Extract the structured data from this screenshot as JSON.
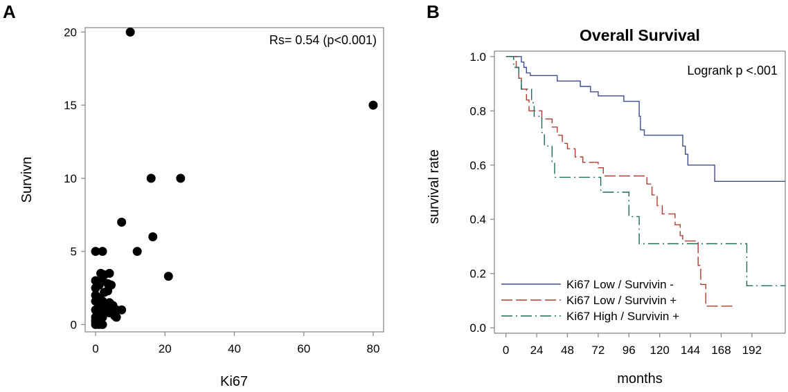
{
  "panels": {
    "a_label": "A",
    "b_label": "B"
  },
  "chart_data": [
    {
      "type": "scatter",
      "title": "",
      "xlabel": "Ki67",
      "ylabel": "Survivn",
      "xlim": [
        -3,
        83
      ],
      "ylim": [
        -0.5,
        20.3
      ],
      "xticks": [
        0,
        20,
        40,
        60,
        80
      ],
      "yticks": [
        0,
        5,
        10,
        15,
        20
      ],
      "grid": false,
      "annotation": "Rs= 0.54 (p<0.001)",
      "series": [
        {
          "points": [
            [
              10,
              20
            ],
            [
              80,
              15
            ],
            [
              16,
              10
            ],
            [
              24.5,
              10
            ],
            [
              7.5,
              7
            ],
            [
              16.5,
              6
            ],
            [
              12,
              5
            ],
            [
              21,
              3.3
            ],
            [
              0,
              5
            ],
            [
              2,
              5
            ],
            [
              1.5,
              3.5
            ],
            [
              4,
              3.5
            ],
            [
              2.5,
              3.4
            ],
            [
              0,
              3
            ],
            [
              2,
              3
            ],
            [
              1,
              2.7
            ],
            [
              3.5,
              2.8
            ],
            [
              0,
              2.5
            ],
            [
              4.5,
              2.7
            ],
            [
              0,
              2
            ],
            [
              2.5,
              2.2
            ],
            [
              3.5,
              2.3
            ],
            [
              1,
              1.8
            ],
            [
              0,
              1.6
            ],
            [
              2,
              1.6
            ],
            [
              4,
              1.5
            ],
            [
              1,
              1.3
            ],
            [
              3,
              1.3
            ],
            [
              5,
              1.3
            ],
            [
              0,
              1
            ],
            [
              2,
              1
            ],
            [
              6,
              1
            ],
            [
              7.5,
              1
            ],
            [
              1,
              0.8
            ],
            [
              4,
              0.8
            ],
            [
              0,
              0.5
            ],
            [
              2,
              0.5
            ],
            [
              5.5,
              0.6
            ],
            [
              0,
              0
            ],
            [
              1,
              0
            ],
            [
              2,
              0
            ],
            [
              0,
              0.2
            ],
            [
              1.5,
              0.1
            ],
            [
              0,
              0.3
            ],
            [
              6,
              0.5
            ]
          ]
        }
      ]
    },
    {
      "type": "line",
      "title": "Overall Survival",
      "xlabel": "months",
      "ylabel": "survival rate",
      "xlim": [
        -9,
        218
      ],
      "ylim": [
        -0.02,
        1.02
      ],
      "xticks": [
        0,
        24,
        48,
        72,
        96,
        120,
        144,
        168,
        192
      ],
      "yticks": [
        0.0,
        0.2,
        0.4,
        0.6,
        0.8,
        1.0
      ],
      "ytick_labels": [
        "0.0",
        "0.2",
        "0.4",
        "0.6",
        "0.8",
        "1.0"
      ],
      "grid": false,
      "annotation": "Logrank p  <.001",
      "legend_position": "bottom-left",
      "series": [
        {
          "name": "Ki67 Low / Survivin -",
          "color": "#3f4b8f",
          "dash": "solid",
          "points": [
            [
              0,
              1.0
            ],
            [
              12,
              1.0
            ],
            [
              12,
              0.98
            ],
            [
              14,
              0.98
            ],
            [
              14,
              0.96
            ],
            [
              16,
              0.96
            ],
            [
              16,
              0.94
            ],
            [
              19,
              0.94
            ],
            [
              19,
              0.93
            ],
            [
              40,
              0.93
            ],
            [
              40,
              0.91
            ],
            [
              58,
              0.91
            ],
            [
              58,
              0.89
            ],
            [
              66,
              0.89
            ],
            [
              66,
              0.87
            ],
            [
              72,
              0.87
            ],
            [
              72,
              0.855
            ],
            [
              92,
              0.855
            ],
            [
              92,
              0.835
            ],
            [
              104,
              0.835
            ],
            [
              104,
              0.78
            ],
            [
              105,
              0.78
            ],
            [
              105,
              0.73
            ],
            [
              108,
              0.73
            ],
            [
              108,
              0.71
            ],
            [
              138,
              0.71
            ],
            [
              138,
              0.67
            ],
            [
              140,
              0.67
            ],
            [
              140,
              0.64
            ],
            [
              142,
              0.64
            ],
            [
              142,
              0.6
            ],
            [
              163,
              0.6
            ],
            [
              163,
              0.54
            ],
            [
              218,
              0.54
            ]
          ]
        },
        {
          "name": "Ki67 Low / Survivin +",
          "color": "#b23a2e",
          "dash": "long-dash",
          "points": [
            [
              0,
              1.0
            ],
            [
              8,
              1.0
            ],
            [
              8,
              0.96
            ],
            [
              10,
              0.96
            ],
            [
              10,
              0.92
            ],
            [
              12,
              0.92
            ],
            [
              12,
              0.88
            ],
            [
              16,
              0.88
            ],
            [
              16,
              0.84
            ],
            [
              18,
              0.84
            ],
            [
              18,
              0.8
            ],
            [
              28,
              0.8
            ],
            [
              28,
              0.77
            ],
            [
              36,
              0.77
            ],
            [
              36,
              0.74
            ],
            [
              40,
              0.74
            ],
            [
              40,
              0.71
            ],
            [
              44,
              0.71
            ],
            [
              44,
              0.68
            ],
            [
              48,
              0.68
            ],
            [
              48,
              0.66
            ],
            [
              54,
              0.66
            ],
            [
              54,
              0.63
            ],
            [
              60,
              0.63
            ],
            [
              60,
              0.61
            ],
            [
              72,
              0.61
            ],
            [
              72,
              0.59
            ],
            [
              76,
              0.59
            ],
            [
              76,
              0.56
            ],
            [
              110,
              0.56
            ],
            [
              110,
              0.53
            ],
            [
              114,
              0.53
            ],
            [
              114,
              0.49
            ],
            [
              118,
              0.49
            ],
            [
              118,
              0.45
            ],
            [
              122,
              0.45
            ],
            [
              122,
              0.42
            ],
            [
              132,
              0.42
            ],
            [
              132,
              0.38
            ],
            [
              136,
              0.38
            ],
            [
              136,
              0.34
            ],
            [
              138,
              0.34
            ],
            [
              138,
              0.32
            ],
            [
              150,
              0.32
            ],
            [
              150,
              0.23
            ],
            [
              152,
              0.23
            ],
            [
              152,
              0.16
            ],
            [
              156,
              0.16
            ],
            [
              156,
              0.08
            ],
            [
              178,
              0.08
            ]
          ]
        },
        {
          "name": "Ki67 High / Survivin +",
          "color": "#1a6b55",
          "dash": "dash-dot",
          "points": [
            [
              0,
              1.0
            ],
            [
              6,
              1.0
            ],
            [
              6,
              0.96
            ],
            [
              10,
              0.96
            ],
            [
              10,
              0.92
            ],
            [
              12,
              0.92
            ],
            [
              12,
              0.88
            ],
            [
              20,
              0.88
            ],
            [
              20,
              0.83
            ],
            [
              22,
              0.83
            ],
            [
              22,
              0.78
            ],
            [
              28,
              0.78
            ],
            [
              28,
              0.72
            ],
            [
              30,
              0.72
            ],
            [
              30,
              0.67
            ],
            [
              36,
              0.67
            ],
            [
              36,
              0.61
            ],
            [
              38,
              0.61
            ],
            [
              38,
              0.555
            ],
            [
              74,
              0.555
            ],
            [
              74,
              0.5
            ],
            [
              96,
              0.5
            ],
            [
              96,
              0.41
            ],
            [
              104,
              0.41
            ],
            [
              104,
              0.31
            ],
            [
              188,
              0.31
            ],
            [
              188,
              0.155
            ],
            [
              218,
              0.155
            ]
          ]
        }
      ]
    }
  ]
}
